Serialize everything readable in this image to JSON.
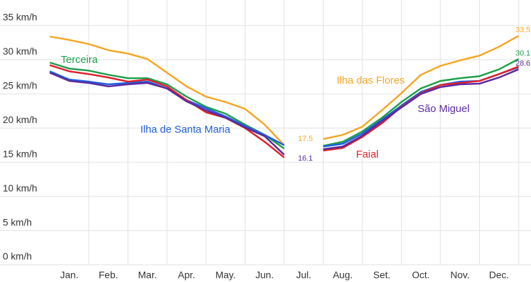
{
  "chart_data": {
    "type": "line",
    "categories": [
      null,
      "Jan.",
      null,
      "Feb.",
      null,
      "Mar.",
      null,
      "Apr.",
      null,
      "May.",
      null,
      "Jun.",
      null,
      "Jul.",
      null,
      "Aug.",
      null,
      "Set.",
      null,
      "Oct.",
      null,
      "Nov.",
      null,
      "Dec.",
      null
    ],
    "series": [
      {
        "name": "Ilha das Flores",
        "color": "#f5a623",
        "values": [
          33.4,
          32.9,
          32.3,
          31.4,
          30.9,
          30.1,
          28.1,
          26.1,
          24.6,
          23.8,
          22.8,
          20.5,
          17.5,
          null,
          18.4,
          19.0,
          20.2,
          22.6,
          25.1,
          27.8,
          29.1,
          29.9,
          30.6,
          31.9,
          33.5
        ],
        "value_labels": [
          null,
          null,
          null,
          null,
          null,
          null,
          null,
          null,
          null,
          null,
          null,
          null,
          "17.5",
          null,
          null,
          null,
          null,
          null,
          null,
          null,
          null,
          null,
          null,
          null,
          "33.5"
        ]
      },
      {
        "name": "Terceira",
        "color": "#1e9e4a",
        "values": [
          29.6,
          28.7,
          28.4,
          27.8,
          27.3,
          27.3,
          26.4,
          24.6,
          23.1,
          22.1,
          20.5,
          19.0,
          17.0,
          null,
          17.4,
          18.0,
          19.5,
          21.5,
          23.8,
          25.8,
          26.9,
          27.3,
          27.6,
          28.6,
          30.1
        ],
        "value_labels": [
          null,
          null,
          null,
          null,
          null,
          null,
          null,
          null,
          null,
          null,
          null,
          null,
          null,
          null,
          null,
          null,
          null,
          null,
          null,
          null,
          null,
          null,
          null,
          null,
          "30.1"
        ]
      },
      {
        "name": "Ilha de Santa Maria",
        "color": "#1f5fe0",
        "values": [
          28.3,
          27.1,
          26.8,
          26.4,
          26.6,
          26.8,
          25.8,
          24.1,
          22.9,
          21.7,
          20.3,
          19.0,
          17.5,
          null,
          17.3,
          17.7,
          19.2,
          21.2,
          23.3,
          25.3,
          26.3,
          26.8,
          26.9,
          27.9,
          28.9
        ]
      },
      {
        "name": "Faial",
        "color": "#e0202a",
        "values": [
          29.2,
          28.3,
          27.9,
          27.4,
          26.8,
          27.1,
          26.1,
          24.1,
          22.3,
          21.5,
          20.0,
          18.0,
          15.7,
          null,
          16.7,
          17.1,
          18.7,
          20.7,
          23.1,
          25.1,
          26.3,
          26.6,
          26.9,
          27.9,
          29.0
        ]
      },
      {
        "name": "São Miguel",
        "color": "#5b2a9e",
        "values": [
          28.1,
          26.9,
          26.6,
          26.1,
          26.4,
          26.6,
          25.8,
          23.9,
          22.6,
          21.5,
          20.1,
          18.8,
          16.1,
          null,
          16.9,
          17.3,
          18.9,
          21.0,
          23.0,
          25.0,
          26.0,
          26.4,
          26.5,
          27.4,
          28.6
        ],
        "value_labels": [
          null,
          null,
          null,
          null,
          null,
          null,
          null,
          null,
          null,
          null,
          null,
          null,
          "16.1",
          null,
          null,
          null,
          null,
          null,
          null,
          null,
          null,
          null,
          null,
          null,
          "28.6"
        ]
      }
    ],
    "ylim": [
      0,
      35
    ],
    "yticks": [
      {
        "value": 0,
        "label": "0 km/h"
      },
      {
        "value": 5,
        "label": "5 km/h"
      },
      {
        "value": 10,
        "label": "10 km/h"
      },
      {
        "value": 15,
        "label": "15 km/h"
      },
      {
        "value": 20,
        "label": "20 km/h"
      },
      {
        "value": 25,
        "label": "25 km/h"
      },
      {
        "value": 30,
        "label": "30 km/h"
      },
      {
        "value": 35,
        "label": "35 km/h"
      }
    ],
    "grid": true
  }
}
